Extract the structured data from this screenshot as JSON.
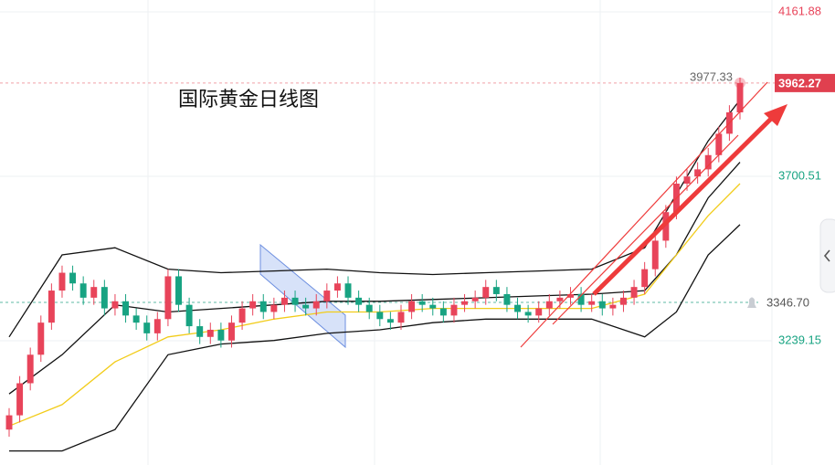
{
  "chart_data": {
    "type": "candlestick",
    "title": "国际黄金日线图",
    "up_color": "#e8445a",
    "down_color": "#17a382",
    "open": [
      2990,
      3030,
      3120,
      3200,
      3290,
      3380,
      3430,
      3400,
      3360,
      3390,
      3330,
      3350,
      3310,
      3290,
      3260,
      3300,
      3420,
      3340,
      3280,
      3250,
      3270,
      3240,
      3290,
      3330,
      3350,
      3320,
      3340,
      3360,
      3340,
      3330,
      3350,
      3380,
      3400,
      3360,
      3340,
      3320,
      3300,
      3290,
      3320,
      3350,
      3340,
      3330,
      3310,
      3340,
      3350,
      3360,
      3390,
      3370,
      3340,
      3320,
      3310,
      3330,
      3350,
      3360,
      3370,
      3340,
      3350,
      3330,
      3340,
      3360,
      3390,
      3440,
      3520,
      3600,
      3680,
      3700,
      3720,
      3760,
      3820,
      3880
    ],
    "high": [
      3050,
      3140,
      3220,
      3310,
      3400,
      3450,
      3450,
      3420,
      3410,
      3410,
      3370,
      3370,
      3330,
      3310,
      3320,
      3440,
      3440,
      3360,
      3300,
      3290,
      3290,
      3310,
      3350,
      3370,
      3370,
      3360,
      3380,
      3380,
      3360,
      3370,
      3400,
      3420,
      3420,
      3380,
      3360,
      3340,
      3320,
      3340,
      3370,
      3370,
      3360,
      3350,
      3360,
      3370,
      3380,
      3410,
      3410,
      3390,
      3360,
      3340,
      3350,
      3370,
      3380,
      3390,
      3390,
      3370,
      3370,
      3360,
      3380,
      3410,
      3460,
      3540,
      3620,
      3700,
      3720,
      3740,
      3780,
      3840,
      3900,
      3977.33
    ],
    "low": [
      2970,
      3010,
      3100,
      3180,
      3270,
      3360,
      3380,
      3340,
      3340,
      3310,
      3310,
      3290,
      3270,
      3240,
      3240,
      3280,
      3320,
      3260,
      3230,
      3230,
      3220,
      3220,
      3270,
      3310,
      3300,
      3300,
      3320,
      3320,
      3310,
      3310,
      3330,
      3360,
      3340,
      3320,
      3300,
      3280,
      3270,
      3270,
      3300,
      3320,
      3310,
      3290,
      3290,
      3320,
      3330,
      3340,
      3350,
      3320,
      3300,
      3290,
      3290,
      3310,
      3330,
      3340,
      3320,
      3320,
      3310,
      3310,
      3320,
      3340,
      3370,
      3420,
      3500,
      3580,
      3660,
      3680,
      3700,
      3740,
      3800,
      3860
    ],
    "close": [
      3030,
      3120,
      3200,
      3290,
      3380,
      3430,
      3400,
      3360,
      3390,
      3330,
      3350,
      3310,
      3290,
      3260,
      3300,
      3420,
      3340,
      3280,
      3250,
      3270,
      3240,
      3290,
      3330,
      3350,
      3320,
      3340,
      3360,
      3340,
      3330,
      3350,
      3380,
      3400,
      3360,
      3340,
      3320,
      3300,
      3290,
      3320,
      3350,
      3340,
      3330,
      3310,
      3340,
      3350,
      3360,
      3390,
      3370,
      3340,
      3320,
      3310,
      3330,
      3350,
      3360,
      3370,
      3340,
      3350,
      3330,
      3340,
      3360,
      3390,
      3440,
      3520,
      3600,
      3680,
      3700,
      3720,
      3760,
      3820,
      3880,
      3962.27
    ],
    "lines": [
      {
        "color": "#111111",
        "x": [
          0,
          5,
          10,
          15,
          20,
          25,
          30,
          35,
          40,
          45,
          50,
          55,
          60,
          63,
          66,
          69
        ],
        "values": [
          3250,
          3480,
          3500,
          3440,
          3430,
          3435,
          3440,
          3430,
          3425,
          3430,
          3435,
          3440,
          3500,
          3650,
          3800,
          3915
        ]
      },
      {
        "color": "#111111",
        "x": [
          0,
          5,
          10,
          15,
          20,
          25,
          30,
          35,
          40,
          45,
          50,
          55,
          60,
          63,
          66,
          69
        ],
        "values": [
          2930,
          2930,
          2990,
          3200,
          3230,
          3240,
          3260,
          3270,
          3290,
          3300,
          3300,
          3300,
          3250,
          3320,
          3480,
          3565
        ]
      },
      {
        "color": "#111111",
        "x": [
          0,
          5,
          10,
          15,
          20,
          25,
          30,
          35,
          40,
          45,
          50,
          55,
          60,
          63,
          66,
          69
        ],
        "values": [
          3090,
          3200,
          3340,
          3320,
          3330,
          3340,
          3350,
          3350,
          3355,
          3360,
          3365,
          3370,
          3380,
          3480,
          3640,
          3740
        ]
      },
      {
        "color": "#f2cc1a",
        "x": [
          0,
          5,
          10,
          15,
          20,
          25,
          30,
          35,
          40,
          45,
          50,
          55,
          60,
          63,
          66,
          69
        ],
        "values": [
          3000,
          3060,
          3180,
          3250,
          3270,
          3300,
          3320,
          3320,
          3330,
          3330,
          3330,
          3330,
          3370,
          3480,
          3590,
          3680
        ]
      }
    ],
    "ylim": [
      2890.6,
      4195.2
    ],
    "yticks": [
      3239.15,
      3700.51,
      4161.88
    ],
    "ref_line": {
      "value": 3346.7,
      "label": "3346.70"
    },
    "grid": true
  }
}
